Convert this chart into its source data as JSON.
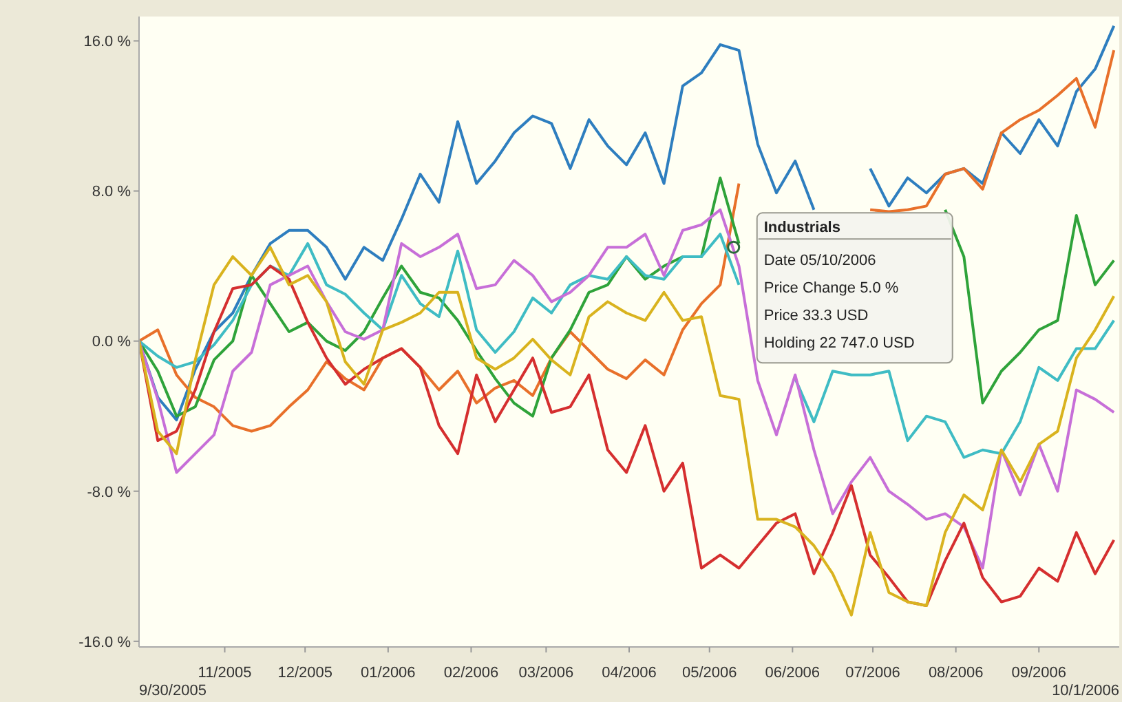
{
  "chart_data": {
    "type": "line",
    "x": [
      "2005-09-30",
      "2005-10-07",
      "2005-10-14",
      "2005-10-21",
      "2005-10-28",
      "2005-11-04",
      "2005-11-11",
      "2005-11-18",
      "2005-11-25",
      "2005-12-02",
      "2005-12-09",
      "2005-12-16",
      "2005-12-23",
      "2005-12-30",
      "2006-01-06",
      "2006-01-13",
      "2006-01-20",
      "2006-01-27",
      "2006-02-03",
      "2006-02-10",
      "2006-02-17",
      "2006-02-24",
      "2006-03-03",
      "2006-03-10",
      "2006-03-17",
      "2006-03-24",
      "2006-03-31",
      "2006-04-07",
      "2006-04-14",
      "2006-04-21",
      "2006-04-28",
      "2006-05-05",
      "2006-05-12",
      "2006-05-19",
      "2006-05-26",
      "2006-06-02",
      "2006-06-09",
      "2006-06-16",
      "2006-06-23",
      "2006-06-30",
      "2006-07-07",
      "2006-07-14",
      "2006-07-21",
      "2006-07-28",
      "2006-08-04",
      "2006-08-11",
      "2006-08-18",
      "2006-08-25",
      "2006-09-01",
      "2006-09-08",
      "2006-09-15",
      "2006-09-22",
      "2006-09-29"
    ],
    "series": [
      {
        "color": "#2e7ebf",
        "values": [
          0,
          -3.0,
          -4.2,
          -1.5,
          0.5,
          1.5,
          3.5,
          5.2,
          5.9,
          5.9,
          5.0,
          3.3,
          5.0,
          4.3,
          6.5,
          8.9,
          7.4,
          11.7,
          8.4,
          9.6,
          11.1,
          12.0,
          11.6,
          9.2,
          11.8,
          10.4,
          9.4,
          11.1,
          8.4,
          13.6,
          14.3,
          15.8,
          15.5,
          10.5,
          7.9,
          9.6,
          7.0,
          null,
          null,
          9.2,
          7.2,
          8.7,
          7.9,
          8.9,
          9.2,
          8.4,
          11.1,
          10.0,
          11.8,
          10.4,
          13.3,
          14.5,
          16.8
        ]
      },
      {
        "color": "#e8702a",
        "values": [
          0,
          0.6,
          -1.8,
          -3.0,
          -3.5,
          -4.5,
          -4.8,
          -4.5,
          -3.5,
          -2.6,
          -1.1,
          -2.0,
          -2.6,
          -0.9,
          -0.4,
          -1.4,
          -2.6,
          -1.6,
          -3.3,
          -2.5,
          -2.1,
          -2.9,
          -0.9,
          0.5,
          -0.5,
          -1.5,
          -2.0,
          -1.0,
          -1.8,
          0.6,
          2.0,
          3.0,
          8.4,
          null,
          null,
          null,
          null,
          null,
          null,
          7.0,
          6.9,
          7.0,
          7.2,
          8.9,
          9.2,
          8.1,
          11.1,
          11.8,
          12.3,
          13.1,
          14.0,
          11.4,
          15.5
        ]
      },
      {
        "color": "#2fa33a",
        "values": [
          0,
          -1.6,
          -4.0,
          -3.5,
          -1.0,
          0,
          3.5,
          2.0,
          0.5,
          1.0,
          0.0,
          -0.5,
          0.5,
          2.3,
          4.0,
          2.6,
          2.3,
          1.1,
          -0.5,
          -2.0,
          -3.3,
          -4.0,
          -0.9,
          0.6,
          2.6,
          3.0,
          4.5,
          3.3,
          4.0,
          4.5,
          4.5,
          8.7,
          5.2,
          null,
          null,
          null,
          null,
          null,
          null,
          null,
          null,
          null,
          null,
          7.0,
          4.5,
          -3.3,
          -1.6,
          -0.6,
          0.6,
          1.1,
          6.7,
          3.0,
          4.3
        ]
      },
      {
        "color": "#3fbcc4",
        "values": [
          0,
          -0.8,
          -1.4,
          -1.1,
          -0.2,
          1.1,
          3.0,
          4.0,
          3.5,
          5.2,
          3.0,
          2.5,
          1.5,
          0.6,
          3.5,
          2.0,
          1.3,
          4.8,
          0.6,
          -0.6,
          0.5,
          2.3,
          1.5,
          3.0,
          3.5,
          3.3,
          4.5,
          3.5,
          3.3,
          4.5,
          4.5,
          5.7,
          3.0,
          null,
          null,
          -2.0,
          -4.3,
          -1.6,
          -1.8,
          -1.8,
          -1.6,
          -5.3,
          -4.0,
          -4.3,
          -6.2,
          -5.8,
          -6.0,
          -4.3,
          -1.4,
          -2.1,
          -0.4,
          -0.4,
          1.1
        ]
      },
      {
        "color": "#c76fd8",
        "values": [
          0,
          -3.1,
          -7.0,
          -6.0,
          -5.0,
          -1.6,
          -0.6,
          3.0,
          3.5,
          4.0,
          2.1,
          0.5,
          0.1,
          0.6,
          5.2,
          4.5,
          5.0,
          5.7,
          2.8,
          3.0,
          4.3,
          3.5,
          2.1,
          2.6,
          3.5,
          5.0,
          5.0,
          5.7,
          3.5,
          5.9,
          6.2,
          7.0,
          4.0,
          -2.1,
          -5.0,
          -1.8,
          -5.8,
          -9.2,
          -7.5,
          -6.2,
          -8.0,
          -8.7,
          -9.5,
          -9.2,
          -9.9,
          -12.1,
          -5.8,
          -8.2,
          -5.5,
          -8.0,
          -2.6,
          -3.1,
          -3.8
        ]
      },
      {
        "color": "#d52f2f",
        "values": [
          0,
          -5.3,
          -4.8,
          -2.6,
          0.5,
          2.8,
          3.0,
          4.0,
          3.3,
          1.0,
          -0.9,
          -2.3,
          -1.5,
          -0.9,
          -0.4,
          -1.4,
          -4.5,
          -6.0,
          -1.8,
          -4.3,
          -2.6,
          -0.9,
          -3.8,
          -3.5,
          -1.8,
          -5.8,
          -7.0,
          -4.5,
          -8.0,
          -6.5,
          -12.1,
          -11.4,
          -12.1,
          -10.9,
          -9.7,
          -9.2,
          -12.4,
          -10.2,
          -7.7,
          -11.4,
          -12.6,
          -13.9,
          -14.1,
          -11.7,
          -9.7,
          -12.6,
          -13.9,
          -13.6,
          -12.1,
          -12.8,
          -10.2,
          -12.4,
          -10.6
        ]
      },
      {
        "color": "#d9b31e",
        "values": [
          0,
          -4.8,
          -6.0,
          -1.0,
          3.0,
          4.5,
          3.5,
          5.0,
          3.0,
          3.5,
          2.1,
          -1.1,
          -2.3,
          0.6,
          1.0,
          1.5,
          2.6,
          2.6,
          -0.9,
          -1.5,
          -0.9,
          0.1,
          -1.0,
          -1.8,
          1.3,
          2.1,
          1.5,
          1.1,
          2.6,
          1.1,
          1.3,
          -2.9,
          -3.1,
          -9.5,
          -9.5,
          -9.9,
          -10.9,
          -12.4,
          -14.6,
          -10.2,
          -13.4,
          -13.9,
          -14.1,
          -10.2,
          -8.2,
          -9.0,
          -5.8,
          -7.5,
          -5.5,
          -4.8,
          -0.9,
          0.6,
          2.4
        ]
      }
    ],
    "xlim": [
      "2005-09-30",
      "2006-10-01"
    ],
    "xticks": [
      {
        "value": "2005-11-01",
        "label": "11/2005"
      },
      {
        "value": "2005-12-01",
        "label": "12/2005"
      },
      {
        "value": "2006-01-01",
        "label": "01/2006"
      },
      {
        "value": "2006-02-01",
        "label": "02/2006"
      },
      {
        "value": "2006-03-01",
        "label": "03/2006"
      },
      {
        "value": "2006-04-01",
        "label": "04/2006"
      },
      {
        "value": "2006-05-01",
        "label": "05/2006"
      },
      {
        "value": "2006-06-01",
        "label": "06/2006"
      },
      {
        "value": "2006-07-01",
        "label": "07/2006"
      },
      {
        "value": "2006-08-01",
        "label": "08/2006"
      },
      {
        "value": "2006-09-01",
        "label": "09/2006"
      }
    ],
    "ylim": [
      -16.3,
      17.3
    ],
    "yticks": [
      {
        "value": -16,
        "label": "-16.0 %"
      },
      {
        "value": -8,
        "label": "-8.0 %"
      },
      {
        "value": 0,
        "label": "0.0 %"
      },
      {
        "value": 8,
        "label": "8.0 %"
      },
      {
        "value": 16,
        "label": "16.0 %"
      }
    ],
    "line_style": "solid",
    "annotations": [
      "9/30/2005",
      "10/1/2006",
      {
        "text": "Industrials\nDate 05/10/2006\nPrice Change 5.0 %\nPrice 33.3 USD\nHolding 22 747.0 USD",
        "x": "2006-05-10",
        "y": 5.0
      }
    ]
  }
}
